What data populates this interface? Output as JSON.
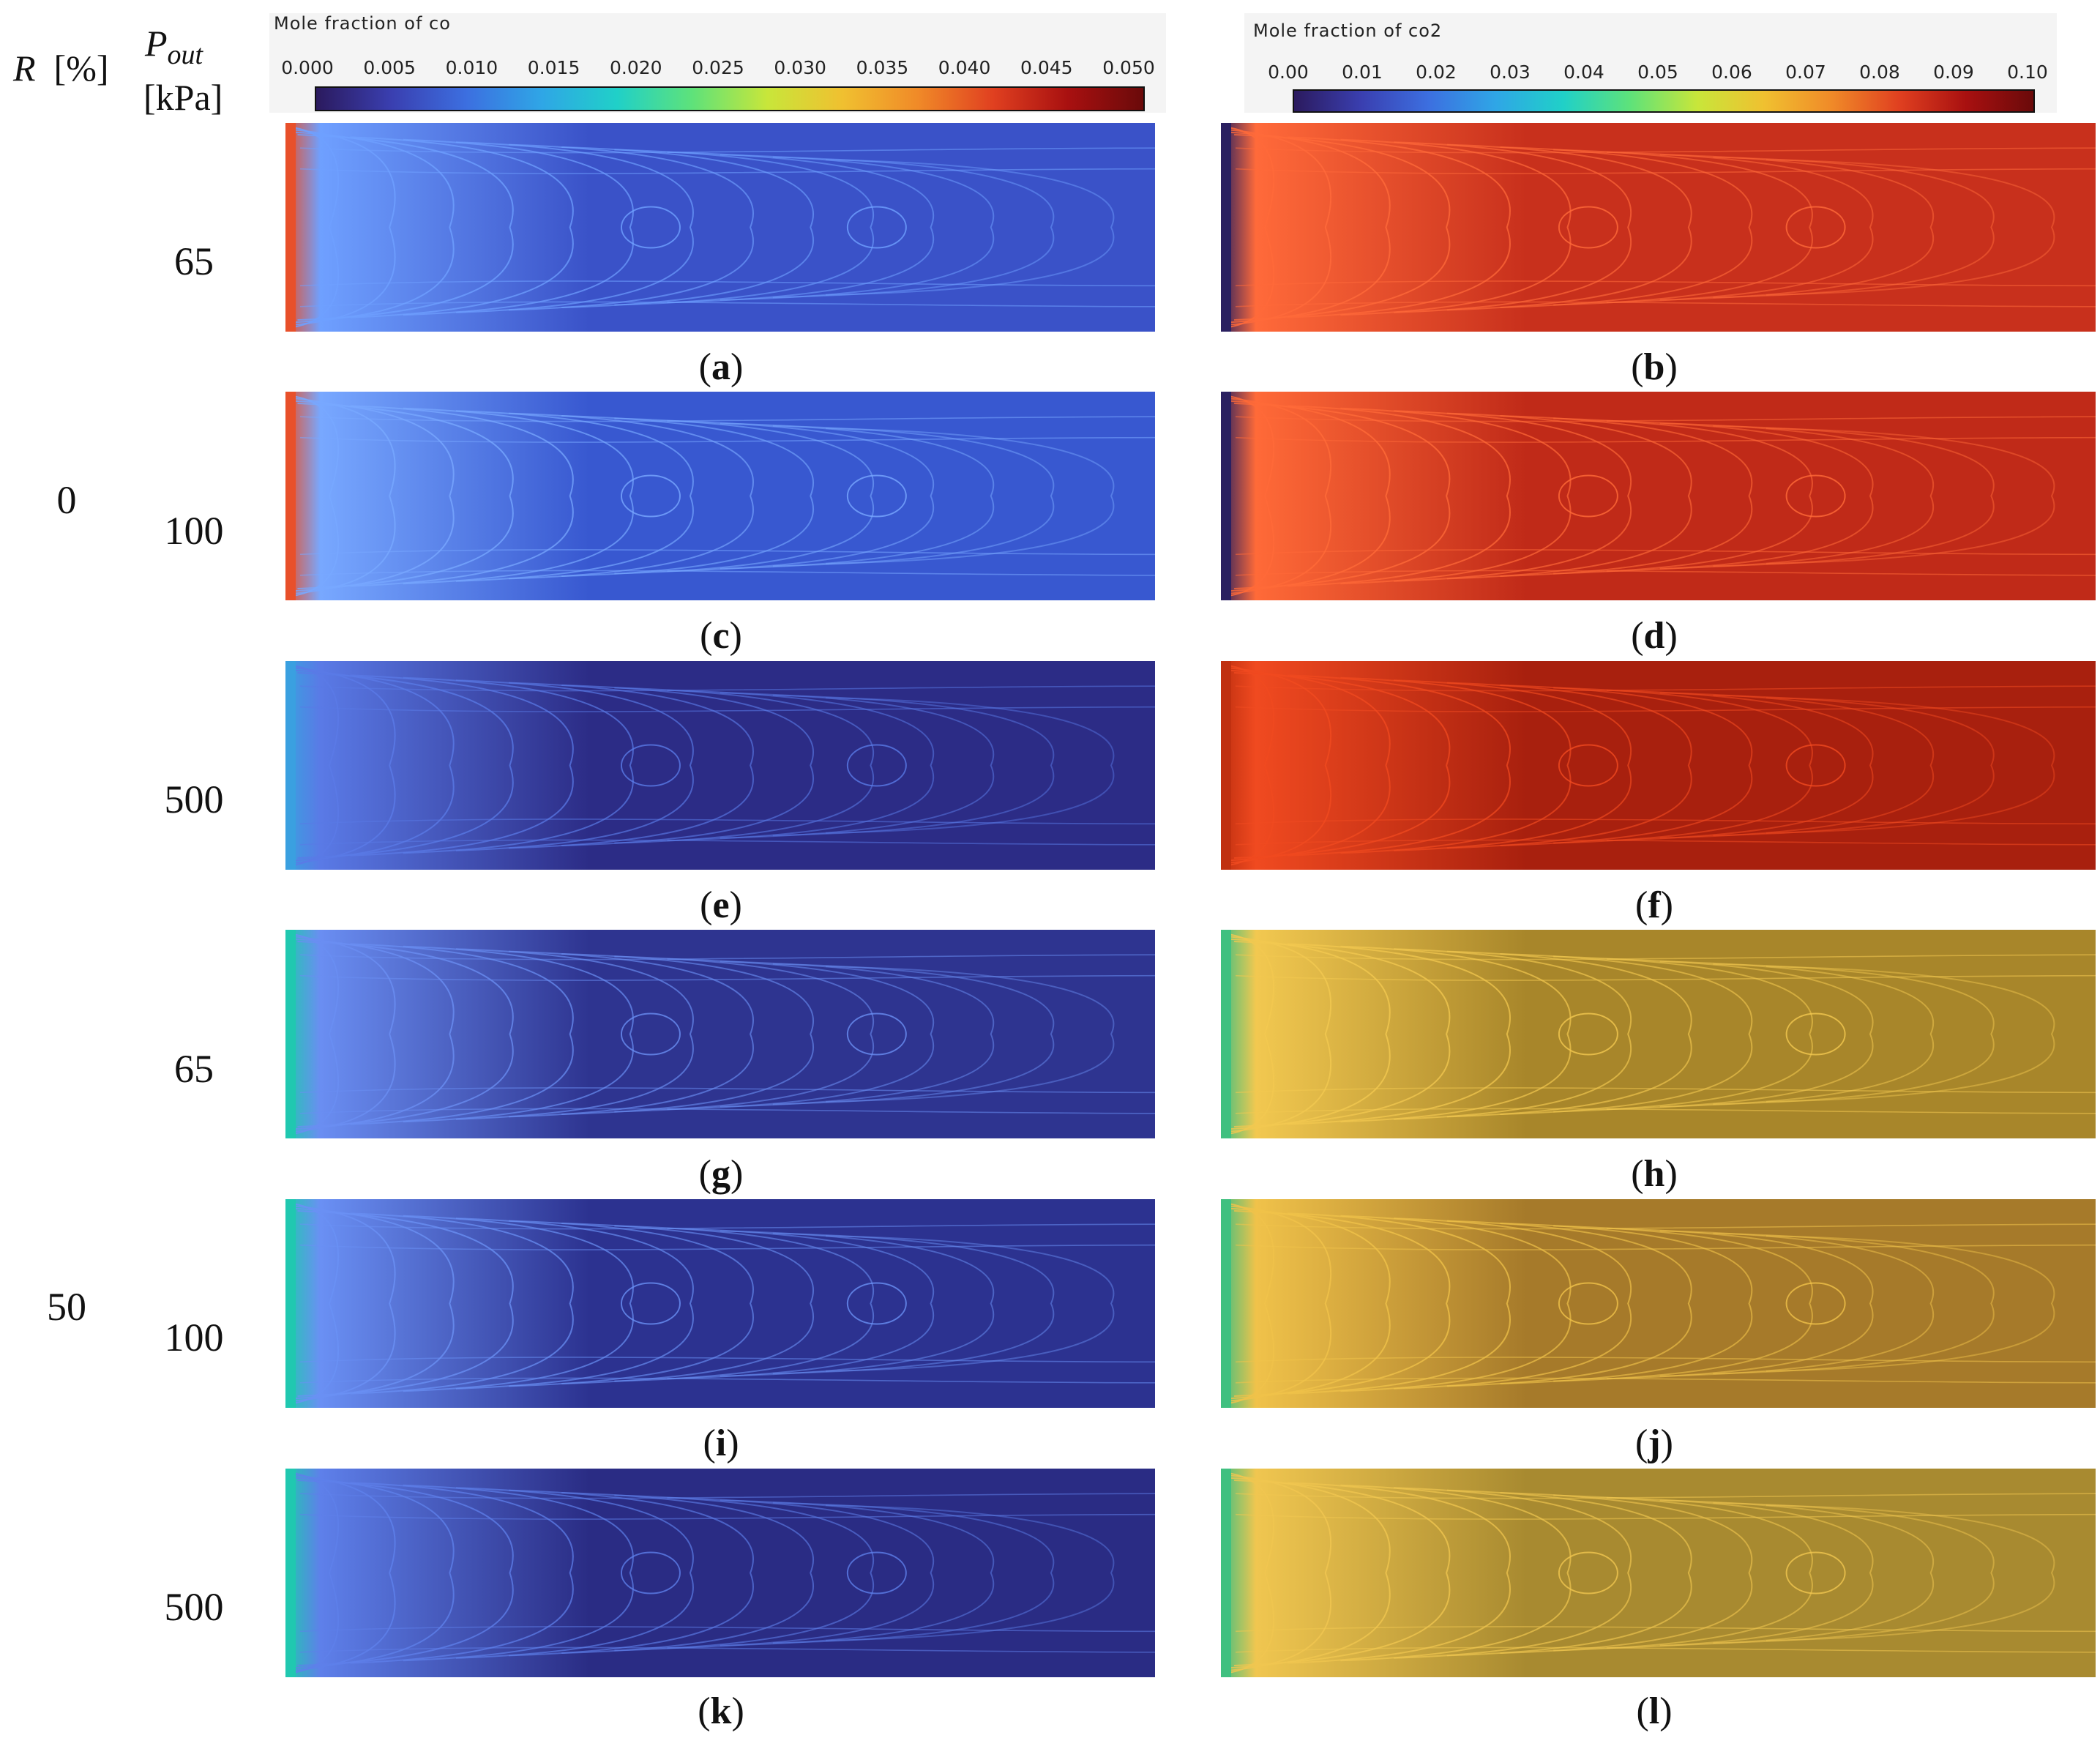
{
  "headers": {
    "r_var": "R",
    "r_unit": "[%]",
    "p_var": "P",
    "p_sub": "out",
    "p_unit": "[kPa]"
  },
  "groups": [
    {
      "r_label": "0"
    },
    {
      "r_label": "50"
    }
  ],
  "colorbars": {
    "co": {
      "title": "Mole fraction of  co",
      "ticks": [
        "0.000",
        "0.005",
        "0.010",
        "0.015",
        "0.020",
        "0.025",
        "0.030",
        "0.035",
        "0.040",
        "0.045",
        "0.050"
      ],
      "range": [
        0.0,
        0.05
      ]
    },
    "co2": {
      "title": "Mole fraction of  co2",
      "ticks": [
        "0.00",
        "0.01",
        "0.02",
        "0.03",
        "0.04",
        "0.05",
        "0.06",
        "0.07",
        "0.08",
        "0.09",
        "0.10"
      ],
      "range": [
        0.0,
        0.1
      ]
    },
    "colormap": [
      "#2b1a5e",
      "#3a3fb0",
      "#3c6fe0",
      "#2fa6e6",
      "#20d0c8",
      "#5ee27a",
      "#c8e63a",
      "#f0c030",
      "#f08a28",
      "#e04020",
      "#a81010",
      "#6a0a0a"
    ]
  },
  "rows": [
    {
      "p_label": "65",
      "left_caption": "a",
      "right_caption": "b"
    },
    {
      "p_label": "100",
      "left_caption": "c",
      "right_caption": "d"
    },
    {
      "p_label": "500",
      "left_caption": "e",
      "right_caption": "f"
    },
    {
      "p_label": "65",
      "left_caption": "g",
      "right_caption": "h"
    },
    {
      "p_label": "100",
      "left_caption": "i",
      "right_caption": "j"
    },
    {
      "p_label": "500",
      "left_caption": "k",
      "right_caption": "l"
    }
  ],
  "panel_colors": {
    "a": {
      "base": "#3a52c8",
      "line": "#6fa0ff",
      "inlet": "#e8502a"
    },
    "b": {
      "base": "#c8301c",
      "line": "#ff6a3a",
      "inlet": "#2a2060"
    },
    "c": {
      "base": "#3858d0",
      "line": "#78a8ff",
      "inlet": "#e8502a"
    },
    "d": {
      "base": "#c02a18",
      "line": "#ff6a38",
      "inlet": "#2a2060"
    },
    "e": {
      "base": "#2c2c86",
      "line": "#5a7ae6",
      "inlet": "#3aa0e0"
    },
    "f": {
      "base": "#a8200e",
      "line": "#f04a20",
      "inlet": "#c03010"
    },
    "g": {
      "base": "#2e3490",
      "line": "#6a8ef2",
      "inlet": "#20c8b0"
    },
    "h": {
      "base": "#a8862a",
      "line": "#f2c850",
      "inlet": "#40c080"
    },
    "i": {
      "base": "#2c3290",
      "line": "#6a90f4",
      "inlet": "#20c8b0"
    },
    "j": {
      "base": "#a67a2a",
      "line": "#f0c24a",
      "inlet": "#40c080"
    },
    "k": {
      "base": "#2a2c84",
      "line": "#5e80ea",
      "inlet": "#20c8b0"
    },
    "l": {
      "base": "#a88a30",
      "line": "#f0c650",
      "inlet": "#40c080"
    }
  }
}
